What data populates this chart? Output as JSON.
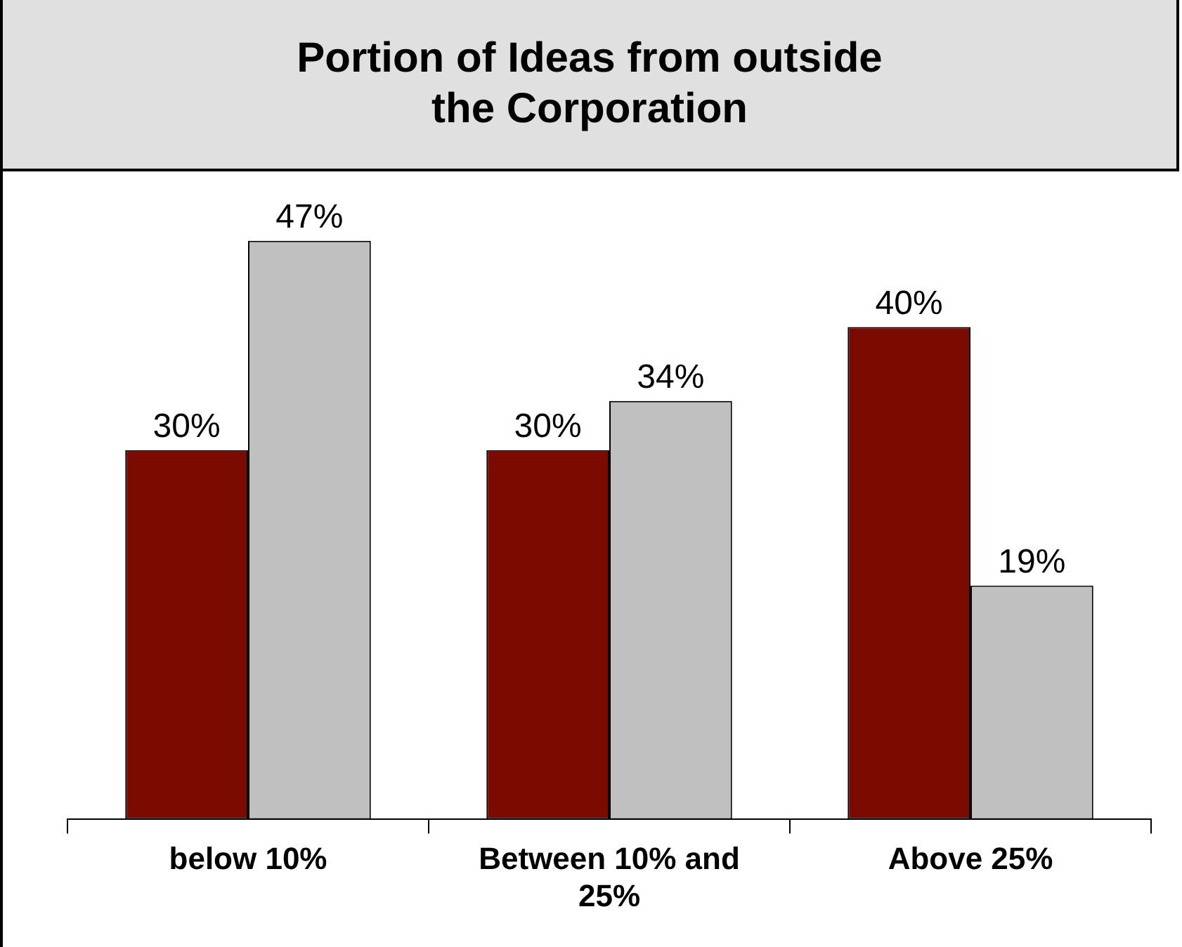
{
  "chart_data": {
    "type": "bar",
    "title": "Portion of Ideas from outside  the Corporation",
    "categories": [
      "below 10%",
      "Between 10% and 25%",
      "Above 25%"
    ],
    "series": [
      {
        "color": "#7b0a00",
        "values": [
          30,
          30,
          40
        ],
        "value_labels": [
          "30%",
          "30%",
          "40%"
        ]
      },
      {
        "color": "#c0c0c0",
        "values": [
          47,
          34,
          19
        ],
        "value_labels": [
          "47%",
          "34%",
          "19%"
        ]
      }
    ],
    "grid": false,
    "legend": false
  }
}
